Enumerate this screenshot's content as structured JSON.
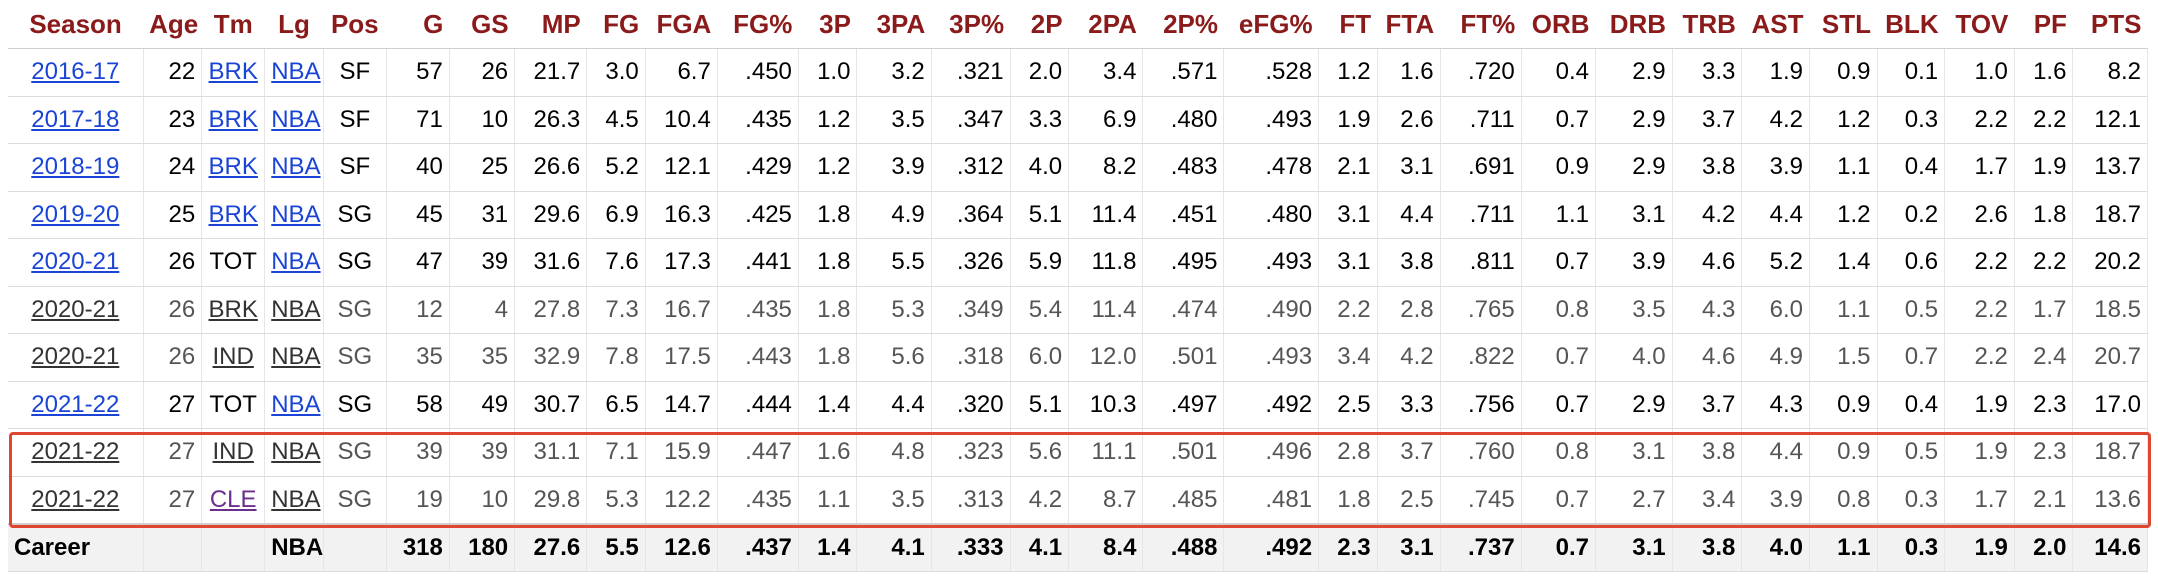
{
  "columns": [
    "Season",
    "Age",
    "Tm",
    "Lg",
    "Pos",
    "G",
    "GS",
    "MP",
    "FG",
    "FGA",
    "FG%",
    "3P",
    "3PA",
    "3P%",
    "2P",
    "2PA",
    "2P%",
    "eFG%",
    "FT",
    "FTA",
    "FT%",
    "ORB",
    "DRB",
    "TRB",
    "AST",
    "STL",
    "BLK",
    "TOV",
    "PF",
    "PTS"
  ],
  "rows": [
    {
      "season": "2016-17",
      "age": "22",
      "tm": "BRK",
      "lg": "NBA",
      "pos": "SF",
      "g": "57",
      "gs": "26",
      "mp": "21.7",
      "fg": "3.0",
      "fga": "6.7",
      "fg_pct": ".450",
      "p3": "1.0",
      "p3a": "3.2",
      "p3_pct": ".321",
      "p2": "2.0",
      "p2a": "3.4",
      "p2_pct": ".571",
      "efg_pct": ".528",
      "ft": "1.2",
      "fta": "1.6",
      "ft_pct": ".720",
      "orb": "0.4",
      "drb": "2.9",
      "trb": "3.3",
      "ast": "1.9",
      "stl": "0.9",
      "blk": "0.1",
      "tov": "1.0",
      "pf": "1.6",
      "pts": "8.2"
    },
    {
      "season": "2017-18",
      "age": "23",
      "tm": "BRK",
      "lg": "NBA",
      "pos": "SF",
      "g": "71",
      "gs": "10",
      "mp": "26.3",
      "fg": "4.5",
      "fga": "10.4",
      "fg_pct": ".435",
      "p3": "1.2",
      "p3a": "3.5",
      "p3_pct": ".347",
      "p2": "3.3",
      "p2a": "6.9",
      "p2_pct": ".480",
      "efg_pct": ".493",
      "ft": "1.9",
      "fta": "2.6",
      "ft_pct": ".711",
      "orb": "0.7",
      "drb": "2.9",
      "trb": "3.7",
      "ast": "4.2",
      "stl": "1.2",
      "blk": "0.3",
      "tov": "2.2",
      "pf": "2.2",
      "pts": "12.1"
    },
    {
      "season": "2018-19",
      "age": "24",
      "tm": "BRK",
      "lg": "NBA",
      "pos": "SF",
      "g": "40",
      "gs": "25",
      "mp": "26.6",
      "fg": "5.2",
      "fga": "12.1",
      "fg_pct": ".429",
      "p3": "1.2",
      "p3a": "3.9",
      "p3_pct": ".312",
      "p2": "4.0",
      "p2a": "8.2",
      "p2_pct": ".483",
      "efg_pct": ".478",
      "ft": "2.1",
      "fta": "3.1",
      "ft_pct": ".691",
      "orb": "0.9",
      "drb": "2.9",
      "trb": "3.8",
      "ast": "3.9",
      "stl": "1.1",
      "blk": "0.4",
      "tov": "1.7",
      "pf": "1.9",
      "pts": "13.7"
    },
    {
      "season": "2019-20",
      "age": "25",
      "tm": "BRK",
      "lg": "NBA",
      "pos": "SG",
      "g": "45",
      "gs": "31",
      "mp": "29.6",
      "fg": "6.9",
      "fga": "16.3",
      "fg_pct": ".425",
      "p3": "1.8",
      "p3a": "4.9",
      "p3_pct": ".364",
      "p2": "5.1",
      "p2a": "11.4",
      "p2_pct": ".451",
      "efg_pct": ".480",
      "ft": "3.1",
      "fta": "4.4",
      "ft_pct": ".711",
      "orb": "1.1",
      "drb": "3.1",
      "trb": "4.2",
      "ast": "4.4",
      "stl": "1.2",
      "blk": "0.2",
      "tov": "2.6",
      "pf": "1.8",
      "pts": "18.7"
    },
    {
      "season": "2020-21",
      "age": "26",
      "tm": "TOT",
      "lg": "NBA",
      "pos": "SG",
      "g": "47",
      "gs": "39",
      "mp": "31.6",
      "fg": "7.6",
      "fga": "17.3",
      "fg_pct": ".441",
      "p3": "1.8",
      "p3a": "5.5",
      "p3_pct": ".326",
      "p2": "5.9",
      "p2a": "11.8",
      "p2_pct": ".495",
      "efg_pct": ".493",
      "ft": "3.1",
      "fta": "3.8",
      "ft_pct": ".811",
      "orb": "0.7",
      "drb": "3.9",
      "trb": "4.6",
      "ast": "5.2",
      "stl": "1.4",
      "blk": "0.6",
      "tov": "2.2",
      "pf": "2.2",
      "pts": "20.2"
    },
    {
      "season": "2020-21",
      "age": "26",
      "tm": "BRK",
      "lg": "NBA",
      "pos": "SG",
      "g": "12",
      "gs": "4",
      "mp": "27.8",
      "fg": "7.3",
      "fga": "16.7",
      "fg_pct": ".435",
      "p3": "1.8",
      "p3a": "5.3",
      "p3_pct": ".349",
      "p2": "5.4",
      "p2a": "11.4",
      "p2_pct": ".474",
      "efg_pct": ".490",
      "ft": "2.2",
      "fta": "2.8",
      "ft_pct": ".765",
      "orb": "0.8",
      "drb": "3.5",
      "trb": "4.3",
      "ast": "6.0",
      "stl": "1.1",
      "blk": "0.5",
      "tov": "2.2",
      "pf": "1.7",
      "pts": "18.5"
    },
    {
      "season": "2020-21",
      "age": "26",
      "tm": "IND",
      "lg": "NBA",
      "pos": "SG",
      "g": "35",
      "gs": "35",
      "mp": "32.9",
      "fg": "7.8",
      "fga": "17.5",
      "fg_pct": ".443",
      "p3": "1.8",
      "p3a": "5.6",
      "p3_pct": ".318",
      "p2": "6.0",
      "p2a": "12.0",
      "p2_pct": ".501",
      "efg_pct": ".493",
      "ft": "3.4",
      "fta": "4.2",
      "ft_pct": ".822",
      "orb": "0.7",
      "drb": "4.0",
      "trb": "4.6",
      "ast": "4.9",
      "stl": "1.5",
      "blk": "0.7",
      "tov": "2.2",
      "pf": "2.4",
      "pts": "20.7"
    },
    {
      "season": "2021-22",
      "age": "27",
      "tm": "TOT",
      "lg": "NBA",
      "pos": "SG",
      "g": "58",
      "gs": "49",
      "mp": "30.7",
      "fg": "6.5",
      "fga": "14.7",
      "fg_pct": ".444",
      "p3": "1.4",
      "p3a": "4.4",
      "p3_pct": ".320",
      "p2": "5.1",
      "p2a": "10.3",
      "p2_pct": ".497",
      "efg_pct": ".492",
      "ft": "2.5",
      "fta": "3.3",
      "ft_pct": ".756",
      "orb": "0.7",
      "drb": "2.9",
      "trb": "3.7",
      "ast": "4.3",
      "stl": "0.9",
      "blk": "0.4",
      "tov": "1.9",
      "pf": "2.3",
      "pts": "17.0"
    },
    {
      "season": "2021-22",
      "age": "27",
      "tm": "IND",
      "lg": "NBA",
      "pos": "SG",
      "g": "39",
      "gs": "39",
      "mp": "31.1",
      "fg": "7.1",
      "fga": "15.9",
      "fg_pct": ".447",
      "p3": "1.6",
      "p3a": "4.8",
      "p3_pct": ".323",
      "p2": "5.6",
      "p2a": "11.1",
      "p2_pct": ".501",
      "efg_pct": ".496",
      "ft": "2.8",
      "fta": "3.7",
      "ft_pct": ".760",
      "orb": "0.8",
      "drb": "3.1",
      "trb": "3.8",
      "ast": "4.4",
      "stl": "0.9",
      "blk": "0.5",
      "tov": "1.9",
      "pf": "2.3",
      "pts": "18.7"
    },
    {
      "season": "2021-22",
      "age": "27",
      "tm": "CLE",
      "lg": "NBA",
      "pos": "SG",
      "g": "19",
      "gs": "10",
      "mp": "29.8",
      "fg": "5.3",
      "fga": "12.2",
      "fg_pct": ".435",
      "p3": "1.1",
      "p3a": "3.5",
      "p3_pct": ".313",
      "p2": "4.2",
      "p2a": "8.7",
      "p2_pct": ".485",
      "efg_pct": ".481",
      "ft": "1.8",
      "fta": "2.5",
      "ft_pct": ".745",
      "orb": "0.7",
      "drb": "2.7",
      "trb": "3.4",
      "ast": "3.9",
      "stl": "0.8",
      "blk": "0.3",
      "tov": "1.7",
      "pf": "2.1",
      "pts": "13.6"
    }
  ],
  "career": {
    "label": "Career",
    "lg": "NBA",
    "g": "318",
    "gs": "180",
    "mp": "27.6",
    "fg": "5.5",
    "fga": "12.6",
    "fg_pct": ".437",
    "p3": "1.4",
    "p3a": "4.1",
    "p3_pct": ".333",
    "p2": "4.1",
    "p2a": "8.4",
    "p2_pct": ".488",
    "efg_pct": ".492",
    "ft": "2.3",
    "fta": "3.1",
    "ft_pct": ".737",
    "orb": "0.7",
    "drb": "3.1",
    "trb": "3.8",
    "ast": "4.0",
    "stl": "1.1",
    "blk": "0.3",
    "tov": "1.9",
    "pf": "2.0",
    "pts": "14.6"
  },
  "colors": {
    "header_text": "#8b1b1b",
    "link": "#1a44d6",
    "visited_link": "#6b2d8e",
    "highlight_border": "#e0452f",
    "career_bg": "#f2f2f2"
  },
  "highlighted_rows": [
    8,
    9
  ]
}
